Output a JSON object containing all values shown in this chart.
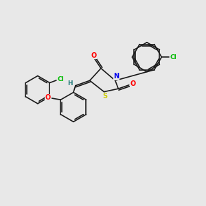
{
  "background_color": "#e8e8e8",
  "bond_color": "#1a1a1a",
  "atom_colors": {
    "Cl": "#00bb00",
    "O": "#ff0000",
    "N": "#0000ee",
    "S": "#cccc00",
    "H": "#2a8080",
    "C": "#1a1a1a"
  },
  "figsize": [
    3.0,
    3.0
  ],
  "dpi": 100
}
